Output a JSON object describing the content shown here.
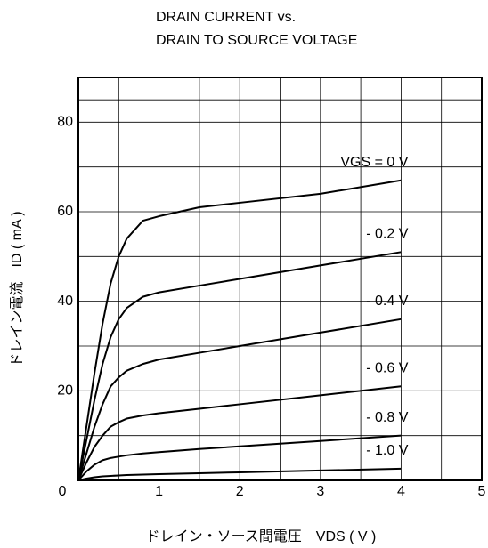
{
  "chart_data": {
    "type": "line",
    "title": [
      "DRAIN CURRENT vs.",
      "DRAIN TO SOURCE VOLTAGE"
    ],
    "x_label": "ドレイン・ソース間電圧　VDS ( V )",
    "y_label": "ドレイン電流　ID ( mA )",
    "x": [
      0,
      0.1,
      0.2,
      0.3,
      0.4,
      0.5,
      0.6,
      0.8,
      1.0,
      1.5,
      2,
      3,
      4
    ],
    "series": [
      {
        "name": "VGS = 0 V",
        "color": "#000000",
        "values": [
          0,
          12,
          24,
          35,
          44,
          50,
          54,
          58,
          59,
          61,
          62,
          64,
          67
        ]
      },
      {
        "name": "- 0.2 V",
        "color": "#000000",
        "values": [
          0,
          9,
          18,
          26,
          32,
          36,
          38.5,
          41,
          42,
          43.5,
          45,
          48,
          51
        ]
      },
      {
        "name": "- 0.4 V",
        "color": "#000000",
        "values": [
          0,
          6,
          12,
          17,
          21,
          23,
          24.5,
          26,
          27,
          28.5,
          30,
          33,
          36
        ]
      },
      {
        "name": "- 0.6 V",
        "color": "#000000",
        "values": [
          0,
          4,
          7.5,
          10,
          12,
          13,
          13.8,
          14.5,
          15,
          16,
          17,
          19,
          21
        ]
      },
      {
        "name": "- 0.8 V",
        "color": "#000000",
        "values": [
          0,
          2,
          3.5,
          4.5,
          5,
          5.3,
          5.6,
          6,
          6.3,
          7,
          7.6,
          8.8,
          10
        ]
      },
      {
        "name": "- 1.0 V",
        "color": "#000000",
        "values": [
          0,
          0.4,
          0.7,
          0.9,
          1,
          1.1,
          1.2,
          1.3,
          1.4,
          1.6,
          1.8,
          2.2,
          2.6
        ]
      }
    ],
    "xlim": [
      0,
      5
    ],
    "xticks": [
      0,
      1,
      2,
      3,
      4,
      5
    ],
    "ylim": [
      0,
      90
    ],
    "yticks": [
      20,
      40,
      60,
      80
    ],
    "grid": true
  }
}
